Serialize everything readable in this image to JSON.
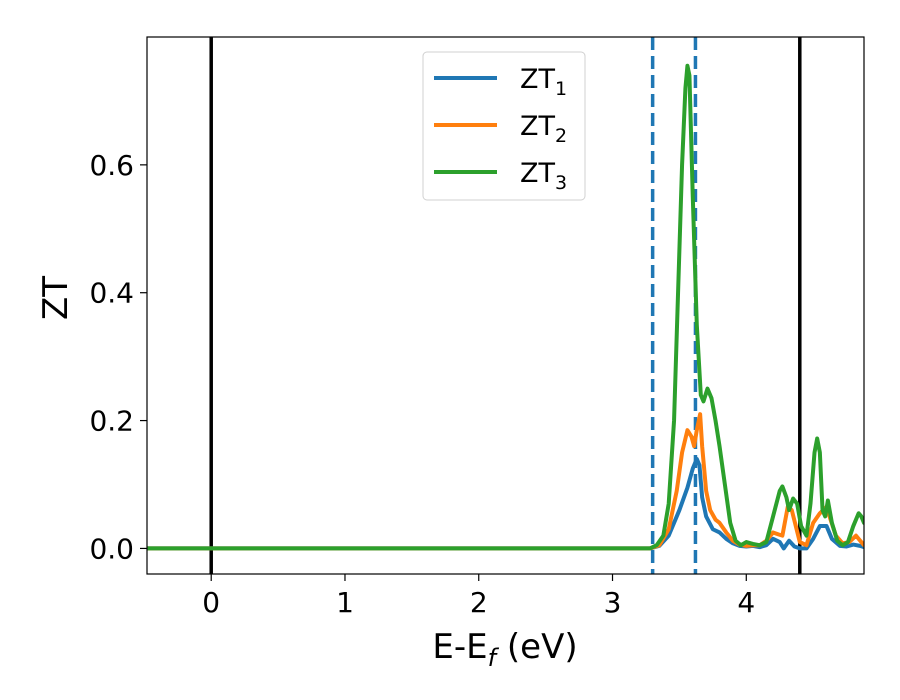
{
  "chart_data": {
    "type": "line",
    "xlabel_main": "E-E",
    "xlabel_sub": "f",
    "xlabel_unit": " (eV)",
    "ylabel": "ZT",
    "xlim": [
      -0.48,
      4.88
    ],
    "ylim": [
      -0.04,
      0.8
    ],
    "xticks": [
      0,
      1,
      2,
      3,
      4
    ],
    "xtick_labels": [
      "0",
      "1",
      "2",
      "3",
      "4"
    ],
    "yticks": [
      0.0,
      0.2,
      0.4,
      0.6
    ],
    "ytick_labels": [
      "0.0",
      "0.2",
      "0.4",
      "0.6"
    ],
    "grid": false,
    "legend_position": "top-center",
    "vlines": [
      {
        "x": 0.0,
        "style": "solid",
        "color": "#000000"
      },
      {
        "x": 4.4,
        "style": "solid",
        "color": "#000000"
      },
      {
        "x": 3.3,
        "style": "dashed",
        "color": "#1f77b4"
      },
      {
        "x": 3.62,
        "style": "dashed",
        "color": "#1f77b4"
      }
    ],
    "series": [
      {
        "name": "ZT",
        "subscript": "1",
        "color": "#1f77b4",
        "points": [
          [
            -0.48,
            0
          ],
          [
            3.28,
            0
          ],
          [
            3.35,
            0.004
          ],
          [
            3.42,
            0.02
          ],
          [
            3.5,
            0.06
          ],
          [
            3.56,
            0.095
          ],
          [
            3.6,
            0.125
          ],
          [
            3.63,
            0.14
          ],
          [
            3.65,
            0.13
          ],
          [
            3.67,
            0.08
          ],
          [
            3.7,
            0.05
          ],
          [
            3.75,
            0.03
          ],
          [
            3.8,
            0.025
          ],
          [
            3.85,
            0.015
          ],
          [
            3.9,
            0.008
          ],
          [
            3.95,
            0.004
          ],
          [
            4.0,
            0.003
          ],
          [
            4.05,
            0.004
          ],
          [
            4.1,
            0.002
          ],
          [
            4.15,
            0.005
          ],
          [
            4.2,
            0.015
          ],
          [
            4.25,
            0.01
          ],
          [
            4.28,
            0.0
          ],
          [
            4.32,
            0.012
          ],
          [
            4.36,
            0.003
          ],
          [
            4.4,
            0.0
          ],
          [
            4.45,
            0.0
          ],
          [
            4.5,
            0.015
          ],
          [
            4.55,
            0.035
          ],
          [
            4.6,
            0.035
          ],
          [
            4.64,
            0.015
          ],
          [
            4.7,
            0.004
          ],
          [
            4.75,
            0.003
          ],
          [
            4.8,
            0.006
          ],
          [
            4.85,
            0.004
          ],
          [
            4.88,
            0.002
          ]
        ]
      },
      {
        "name": "ZT",
        "subscript": "2",
        "color": "#ff7f0e",
        "points": [
          [
            -0.48,
            0
          ],
          [
            3.28,
            0
          ],
          [
            3.35,
            0.005
          ],
          [
            3.42,
            0.03
          ],
          [
            3.48,
            0.09
          ],
          [
            3.52,
            0.15
          ],
          [
            3.56,
            0.185
          ],
          [
            3.59,
            0.175
          ],
          [
            3.61,
            0.16
          ],
          [
            3.63,
            0.185
          ],
          [
            3.655,
            0.21
          ],
          [
            3.67,
            0.16
          ],
          [
            3.7,
            0.09
          ],
          [
            3.73,
            0.06
          ],
          [
            3.77,
            0.045
          ],
          [
            3.8,
            0.04
          ],
          [
            3.85,
            0.025
          ],
          [
            3.9,
            0.012
          ],
          [
            3.95,
            0.006
          ],
          [
            4.0,
            0.004
          ],
          [
            4.05,
            0.005
          ],
          [
            4.1,
            0.005
          ],
          [
            4.15,
            0.012
          ],
          [
            4.2,
            0.025
          ],
          [
            4.24,
            0.022
          ],
          [
            4.27,
            0.02
          ],
          [
            4.31,
            0.065
          ],
          [
            4.34,
            0.06
          ],
          [
            4.37,
            0.035
          ],
          [
            4.4,
            0.01
          ],
          [
            4.45,
            0.005
          ],
          [
            4.5,
            0.04
          ],
          [
            4.55,
            0.055
          ],
          [
            4.6,
            0.065
          ],
          [
            4.63,
            0.045
          ],
          [
            4.67,
            0.02
          ],
          [
            4.72,
            0.008
          ],
          [
            4.77,
            0.01
          ],
          [
            4.82,
            0.02
          ],
          [
            4.86,
            0.01
          ],
          [
            4.88,
            0.005
          ]
        ]
      },
      {
        "name": "ZT",
        "subscript": "3",
        "color": "#2ca02c",
        "points": [
          [
            -0.48,
            0
          ],
          [
            3.28,
            0
          ],
          [
            3.33,
            0.005
          ],
          [
            3.38,
            0.02
          ],
          [
            3.42,
            0.07
          ],
          [
            3.46,
            0.2
          ],
          [
            3.49,
            0.4
          ],
          [
            3.52,
            0.6
          ],
          [
            3.545,
            0.72
          ],
          [
            3.56,
            0.755
          ],
          [
            3.575,
            0.74
          ],
          [
            3.6,
            0.55
          ],
          [
            3.63,
            0.35
          ],
          [
            3.66,
            0.24
          ],
          [
            3.68,
            0.23
          ],
          [
            3.71,
            0.25
          ],
          [
            3.74,
            0.235
          ],
          [
            3.77,
            0.2
          ],
          [
            3.8,
            0.16
          ],
          [
            3.84,
            0.1
          ],
          [
            3.88,
            0.04
          ],
          [
            3.92,
            0.012
          ],
          [
            3.96,
            0.005
          ],
          [
            4.0,
            0.01
          ],
          [
            4.05,
            0.007
          ],
          [
            4.1,
            0.005
          ],
          [
            4.15,
            0.01
          ],
          [
            4.2,
            0.05
          ],
          [
            4.25,
            0.09
          ],
          [
            4.27,
            0.097
          ],
          [
            4.3,
            0.08
          ],
          [
            4.32,
            0.06
          ],
          [
            4.35,
            0.078
          ],
          [
            4.38,
            0.07
          ],
          [
            4.41,
            0.035
          ],
          [
            4.45,
            0.02
          ],
          [
            4.48,
            0.07
          ],
          [
            4.51,
            0.15
          ],
          [
            4.53,
            0.172
          ],
          [
            4.55,
            0.15
          ],
          [
            4.57,
            0.06
          ],
          [
            4.59,
            0.05
          ],
          [
            4.61,
            0.075
          ],
          [
            4.64,
            0.04
          ],
          [
            4.68,
            0.012
          ],
          [
            4.72,
            0.005
          ],
          [
            4.76,
            0.01
          ],
          [
            4.8,
            0.035
          ],
          [
            4.84,
            0.055
          ],
          [
            4.86,
            0.05
          ],
          [
            4.88,
            0.04
          ]
        ]
      }
    ]
  }
}
